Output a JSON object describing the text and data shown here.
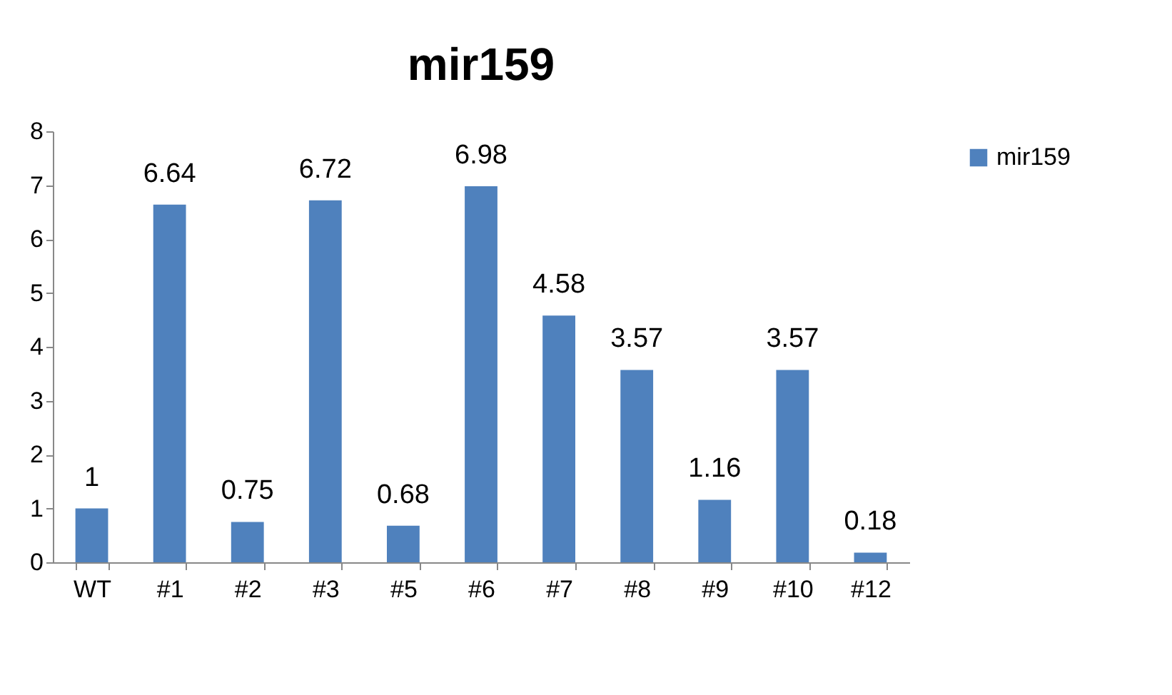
{
  "chart_data": {
    "type": "bar",
    "title": "mir159",
    "categories": [
      "WT",
      "#1",
      "#2",
      "#3",
      "#5",
      "#6",
      "#7",
      "#8",
      "#9",
      "#10",
      "#12"
    ],
    "series": [
      {
        "name": "mir159",
        "color": "#4f81bd",
        "values": [
          1,
          6.64,
          0.75,
          6.72,
          0.68,
          6.98,
          4.58,
          3.57,
          1.16,
          3.57,
          0.18
        ]
      }
    ],
    "ylim": [
      0,
      8
    ],
    "yticks": [
      0,
      1,
      2,
      3,
      4,
      5,
      6,
      7,
      8
    ],
    "grid": false,
    "legend": "right",
    "data_labels": true
  }
}
